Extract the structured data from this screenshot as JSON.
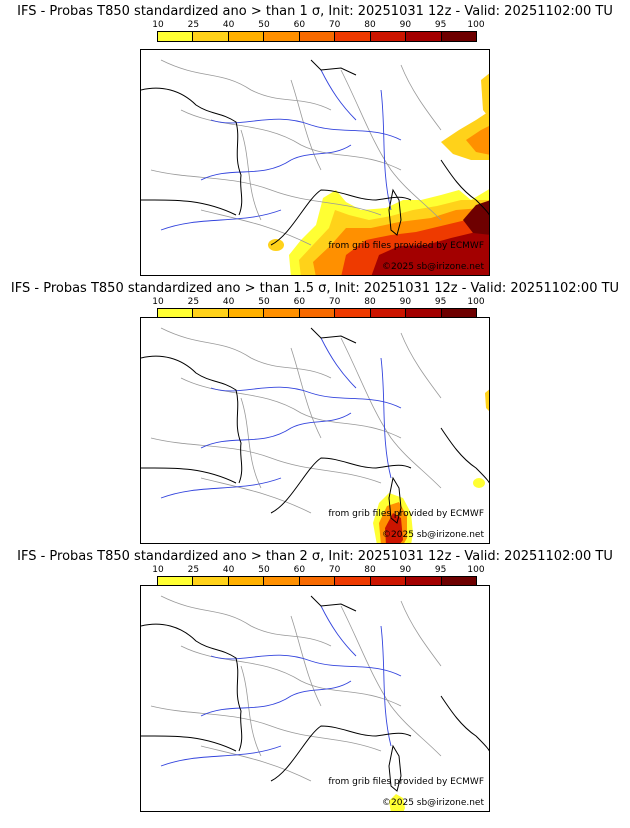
{
  "legend_ticks": [
    "10",
    "25",
    "40",
    "50",
    "60",
    "70",
    "80",
    "90",
    "95",
    "100"
  ],
  "legend_colors": [
    "#ffff33",
    "#ffd21a",
    "#ffb000",
    "#ff9000",
    "#f76a00",
    "#ee3a00",
    "#cc1500",
    "#a30000",
    "#6e0000"
  ],
  "credit_line1": "from grib files provided by ECMWF",
  "credit_line2": "©2025 sb@irizone.net",
  "panels": [
    {
      "title": "IFS - Probas T850  standardized ano > than 1 σ, Init: 20251031 12z - Valid: 20251102:00 TU",
      "threshold_sigma": 1,
      "coverage": "high"
    },
    {
      "title": "IFS - Probas T850  standardized ano > than 1.5 σ, Init: 20251031 12z - Valid: 20251102:00 TU",
      "threshold_sigma": 1.5,
      "coverage": "medium"
    },
    {
      "title": "IFS - Probas T850  standardized ano > than 2 σ, Init: 20251031 12z - Valid: 20251102:00 TU",
      "threshold_sigma": 2,
      "coverage": "low"
    }
  ]
}
